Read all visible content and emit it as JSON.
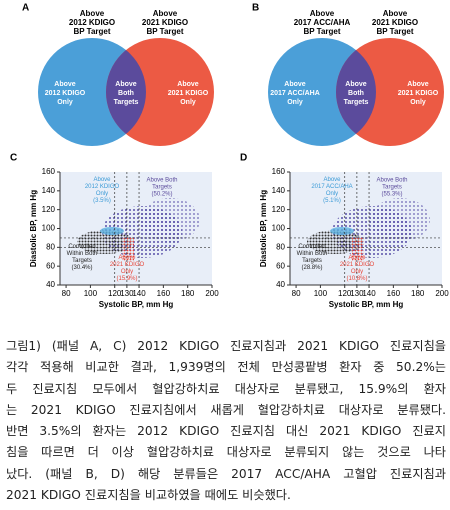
{
  "venn": [
    {
      "letter": "A",
      "left_label": [
        "Above",
        "2012 KDIGO",
        "BP Target"
      ],
      "right_label": [
        "Above",
        "2021 KDIGO",
        "BP Target"
      ],
      "left_only": [
        "Above",
        "2012 KDIGO",
        "Only"
      ],
      "both": [
        "Above",
        "Both",
        "Targets"
      ],
      "right_only": [
        "Above",
        "2021 KDIGO",
        "Only"
      ]
    },
    {
      "letter": "B",
      "left_label": [
        "Above",
        "2017 ACC/AHA",
        "BP Target"
      ],
      "right_label": [
        "Above",
        "2021 KDIGO",
        "BP Target"
      ],
      "left_only": [
        "Above",
        "2017 ACC/AHA",
        "Only"
      ],
      "both": [
        "Above",
        "Both",
        "Targets"
      ],
      "right_only": [
        "Above",
        "2021 KDIGO",
        "Only"
      ]
    }
  ],
  "scatter": [
    {
      "letter": "C",
      "xlabel": "Systolic BP, mm Hg",
      "ylabel": "Diastolic BP, mm Hg",
      "xlim": [
        75,
        200
      ],
      "ylim": [
        40,
        160
      ],
      "xticks": [
        80,
        100,
        120,
        130,
        140,
        160,
        180,
        200
      ],
      "yticks": [
        40,
        60,
        80,
        100,
        120,
        140,
        160
      ],
      "ref_x": [
        120,
        130,
        140
      ],
      "ref_y": [
        80,
        90
      ],
      "annotations": [
        [
          "Above",
          "2012 KDIGO",
          "Only",
          "(3.5%)"
        ],
        [
          "Above Both",
          "Targets",
          "(50.2%)"
        ],
        [
          "Controlled",
          "Within Both",
          "Targets",
          "(30.4%)"
        ],
        [
          "Above",
          "2021 KDIGO",
          "Only",
          "(15.9%)"
        ]
      ]
    },
    {
      "letter": "D",
      "xlabel": "Systolic BP, mm Hg",
      "ylabel": "Diastolic BP, mm Hg",
      "xlim": [
        75,
        200
      ],
      "ylim": [
        40,
        160
      ],
      "xticks": [
        80,
        100,
        120,
        130,
        140,
        160,
        180,
        200
      ],
      "yticks": [
        40,
        60,
        80,
        100,
        120,
        140,
        160
      ],
      "ref_x": [
        120,
        130,
        140
      ],
      "ref_y": [
        80,
        90
      ],
      "annotations": [
        [
          "Above",
          "2017 ACC/AHA",
          "Only",
          "(5.1%)"
        ],
        [
          "Above Both",
          "Targets",
          "(55.3%)"
        ],
        [
          "Controlled",
          "Within Both",
          "Targets",
          "(28.8%)"
        ],
        [
          "Above",
          "2021 KDIGO",
          "Only",
          "(10.8%)"
        ]
      ]
    }
  ],
  "caption": [
    "그림1) (패널 A, C) 2012 KDIGO 진료지침과 2021 KDIGO 진료지침을",
    "각각 적용해 비교한 결과, 1,939명의 전체 만성콩팥병 환자 중 50.2%는",
    "두 진료지침 모두에서 혈압강하치료 대상자로 분류됐고, 15.9%의 환자",
    "는 2021 KDIGO 진료지침에서 새롭게 혈압강하치료 대상자로 분류됐다.",
    "반면 3.5%의 환자는 2012 KDIGO 진료지침 대신 2021 KDIGO 진료지",
    "침을 따르면 더 이상 혈압강하치료 대상자로 분류되지 않는 것으로 나타",
    "났다. (패널 B, D) 해당 분류들은 2017 ACC/AHA 고혈압 진료지침과",
    "2021 KDIGO 진료지침을 비교하였을 때에도 비슷했다."
  ]
}
